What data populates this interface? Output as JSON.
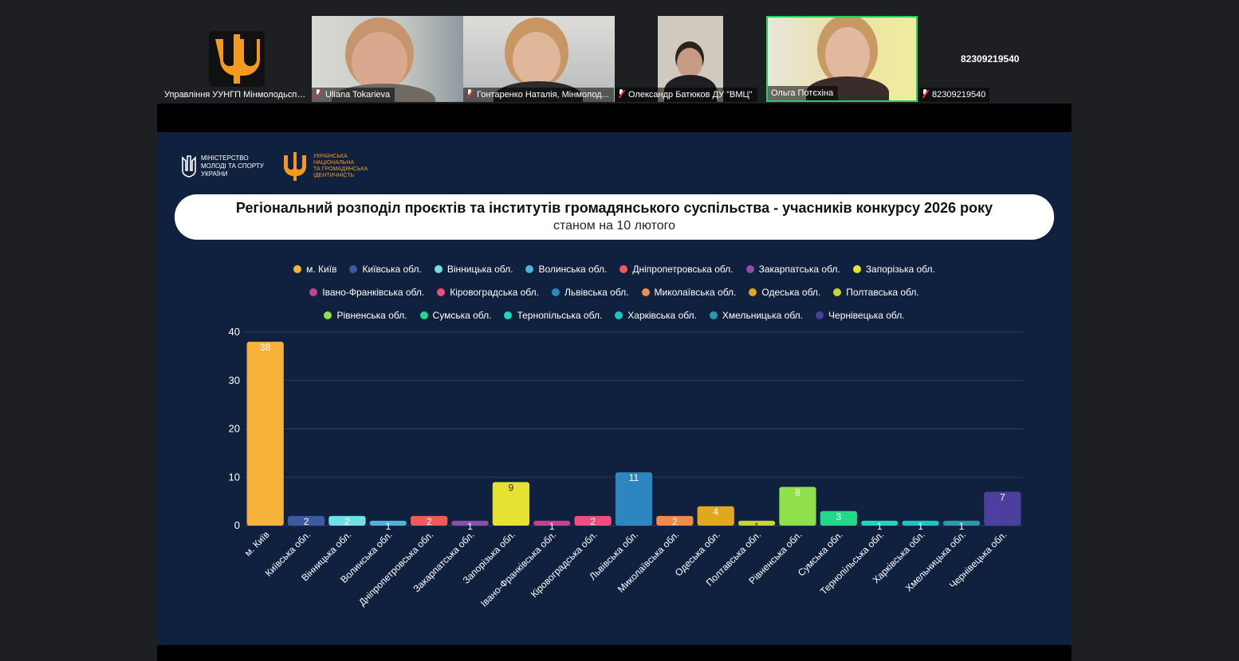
{
  "participants": [
    {
      "name": "Управління УУНГП Мінмолодьспорт",
      "muted": false
    },
    {
      "name": "Uliana Tokarieva",
      "muted": true
    },
    {
      "name": "Гонтаренко Наталія, Мінмолод...",
      "muted": true
    },
    {
      "name": "Олександр Батюков ДУ \"ВМЦ\"",
      "muted": true
    },
    {
      "name": "Ольга Потєхіна",
      "muted": false
    },
    {
      "name": "82309219540",
      "muted": true
    }
  ],
  "phone_tile_label": "82309219540",
  "slide": {
    "logo_ministry": [
      "МІНІСТЕРСТВО",
      "МОЛОДІ ТА СПОРТУ",
      "УКРАЇНИ"
    ],
    "logo_identity": [
      "УКРАЇНСЬКА",
      "НАЦІОНАЛЬНА",
      "ТА ГРОМАДЯНСЬКА",
      "ІДЕНТИЧНІСТЬ"
    ],
    "title": "Регіональний розподіл проєктів та інститутів громадянського суспільства - учасників конкурсу 2026 року",
    "subtitle": "станом на 10 лютого"
  },
  "chart_data": {
    "type": "bar",
    "categories": [
      "м. Київ",
      "Київська обл.",
      "Вінницька обл.",
      "Волинська обл.",
      "Дніпропетровська обл.",
      "Закарпатська обл.",
      "Запорізька обл.",
      "Івано-Франківська обл.",
      "Кіровоградська обл.",
      "Львівська обл.",
      "Миколаївська обл.",
      "Одеська обл.",
      "Полтавська обл.",
      "Рівненська обл.",
      "Сумська обл.",
      "Тернопільська обл.",
      "Харківська обл.",
      "Хмельницька обл.",
      "Чернівецька обл."
    ],
    "values": [
      38,
      2,
      2,
      1,
      2,
      1,
      9,
      1,
      2,
      11,
      2,
      4,
      1,
      8,
      3,
      1,
      1,
      1,
      7
    ],
    "colors": [
      "#f6b23a",
      "#3d5a9e",
      "#6ee0e6",
      "#4fb3d9",
      "#ef5b5b",
      "#8b4fa8",
      "#e6e234",
      "#c4418e",
      "#ec4f7e",
      "#2e86c1",
      "#f28a4c",
      "#e0a81c",
      "#c8d62f",
      "#8fe04a",
      "#22d98a",
      "#1fd6b8",
      "#1cc6c2",
      "#2b9ab0",
      "#4c3f9e"
    ],
    "ylim": [
      0,
      40
    ],
    "yticks": [
      0,
      10,
      20,
      30,
      40
    ],
    "legend_rows": [
      [
        0,
        1,
        2,
        3,
        4,
        5,
        6
      ],
      [
        7,
        8,
        9,
        10,
        11,
        12
      ],
      [
        13,
        14,
        15,
        16,
        17,
        18
      ]
    ],
    "legend_position": "top",
    "grid": true
  }
}
